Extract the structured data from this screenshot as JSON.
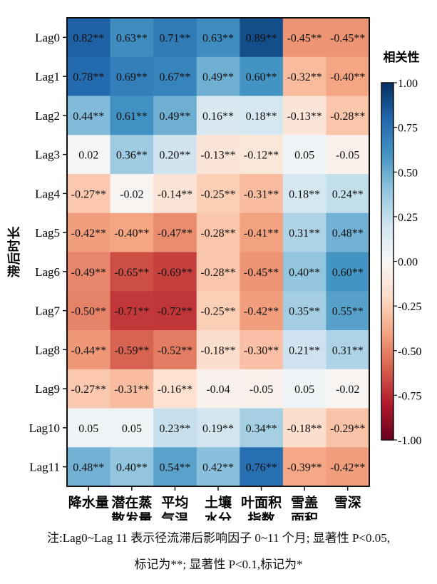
{
  "chart_data": {
    "type": "heatmap",
    "ylabel": "滞后时长",
    "xlabel": "",
    "rows": [
      "Lag0",
      "Lag1",
      "Lag2",
      "Lag3",
      "Lag4",
      "Lag5",
      "Lag6",
      "Lag7",
      "Lag8",
      "Lag9",
      "Lag10",
      "Lag11"
    ],
    "columns": [
      [
        "降水量"
      ],
      [
        "潜在蒸",
        "散发量"
      ],
      [
        "平均",
        "气温"
      ],
      [
        "土壤",
        "水分"
      ],
      [
        "叶面积",
        "指数"
      ],
      [
        "雪盖",
        "面积"
      ],
      [
        "雪深"
      ]
    ],
    "values": [
      [
        0.82,
        0.63,
        0.71,
        0.63,
        0.89,
        -0.45,
        -0.45
      ],
      [
        0.78,
        0.69,
        0.67,
        0.49,
        0.6,
        -0.32,
        -0.4
      ],
      [
        0.44,
        0.61,
        0.49,
        0.16,
        0.18,
        -0.13,
        -0.28
      ],
      [
        0.02,
        0.36,
        0.2,
        -0.13,
        -0.12,
        0.05,
        -0.05
      ],
      [
        -0.27,
        -0.02,
        -0.14,
        -0.25,
        -0.31,
        0.18,
        0.24
      ],
      [
        -0.42,
        -0.4,
        -0.47,
        -0.28,
        -0.41,
        0.31,
        0.48
      ],
      [
        -0.49,
        -0.65,
        -0.69,
        -0.28,
        -0.45,
        0.4,
        0.6
      ],
      [
        -0.5,
        -0.71,
        -0.72,
        -0.25,
        -0.42,
        0.35,
        0.55
      ],
      [
        -0.44,
        -0.59,
        -0.52,
        -0.18,
        -0.3,
        0.21,
        0.31
      ],
      [
        -0.27,
        -0.31,
        -0.16,
        -0.04,
        -0.05,
        0.05,
        -0.02
      ],
      [
        0.05,
        0.05,
        0.23,
        0.19,
        0.34,
        -0.18,
        -0.29
      ],
      [
        0.48,
        0.4,
        0.54,
        0.42,
        0.76,
        -0.39,
        -0.42
      ]
    ],
    "labels": [
      [
        "0.82**",
        "0.63**",
        "0.71**",
        "0.63**",
        "0.89**",
        "-0.45**",
        "-0.45**"
      ],
      [
        "0.78**",
        "0.69**",
        "0.67**",
        "0.49**",
        "0.60**",
        "-0.32**",
        "-0.40**"
      ],
      [
        "0.44**",
        "0.61**",
        "0.49**",
        "0.16**",
        "0.18**",
        "-0.13**",
        "-0.28**"
      ],
      [
        "0.02",
        "0.36**",
        "0.20**",
        "-0.13**",
        "-0.12**",
        "0.05",
        "-0.05"
      ],
      [
        "-0.27**",
        "-0.02",
        "-0.14**",
        "-0.25**",
        "-0.31**",
        "0.18**",
        "0.24**"
      ],
      [
        "-0.42**",
        "-0.40**",
        "-0.47**",
        "-0.28**",
        "-0.41**",
        "0.31**",
        "0.48**"
      ],
      [
        "-0.49**",
        "-0.65**",
        "-0.69**",
        "-0.28**",
        "-0.45**",
        "0.40**",
        "0.60**"
      ],
      [
        "-0.50**",
        "-0.71**",
        "-0.72**",
        "-0.25**",
        "-0.42**",
        "0.35**",
        "0.55**"
      ],
      [
        "-0.44**",
        "-0.59**",
        "-0.52**",
        "-0.18**",
        "-0.30**",
        "0.21**",
        "0.31**"
      ],
      [
        "-0.27**",
        "-0.31**",
        "-0.16**",
        "-0.04",
        "-0.05",
        "0.05",
        "-0.02"
      ],
      [
        "0.05",
        "0.05",
        "0.23**",
        "0.19**",
        "0.34**",
        "-0.18**",
        "-0.29**"
      ],
      [
        "0.48**",
        "0.40**",
        "0.54**",
        "0.42**",
        "0.76**",
        "-0.39**",
        "-0.42**"
      ]
    ],
    "colorbar": {
      "title": "相关性",
      "range": [
        -1,
        1
      ],
      "ticks": [
        "1.00",
        "0.75",
        "0.50",
        "0.25",
        "0.00",
        "-0.25",
        "-0.50",
        "-0.75",
        "-1.00"
      ],
      "colormap": "RdBu",
      "colors": [
        "#67001f",
        "#b2182b",
        "#d6604d",
        "#f4a582",
        "#fddbc7",
        "#f7f7f7",
        "#d1e5f0",
        "#92c5de",
        "#4393c3",
        "#2166ac",
        "#053061"
      ]
    }
  },
  "note": {
    "line1": "注:Lag0~Lag 11 表示径流滞后影响因子 0~11 个月; 显著性 P<0.05,",
    "line2": "标记为**; 显著性 P<0.1,标记为*"
  }
}
